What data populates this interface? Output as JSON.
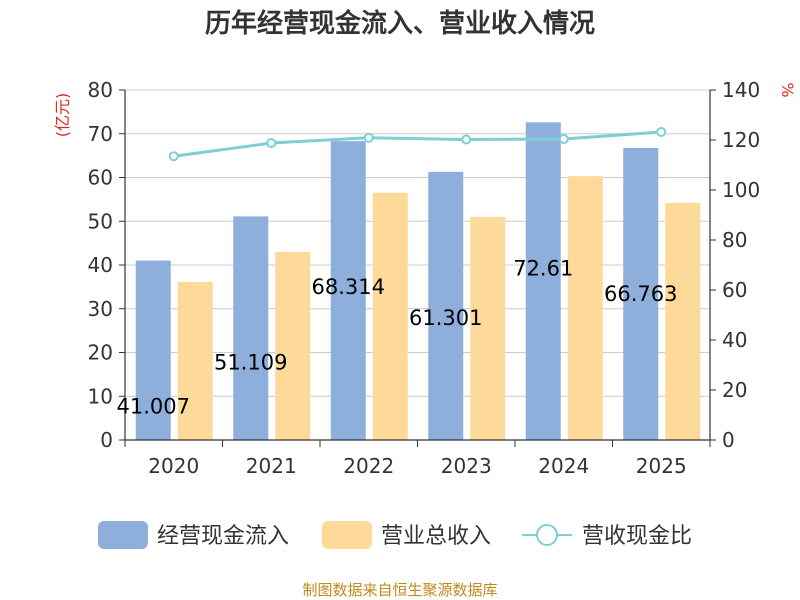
{
  "chart_data": {
    "type": "bar",
    "title": "历年经营现金流入、营业收入情况",
    "categories": [
      "2020",
      "2021",
      "2022",
      "2023",
      "2024",
      "2025"
    ],
    "series": [
      {
        "name": "经营现金流入",
        "axis": "left",
        "type": "bar",
        "values": [
          41.007,
          51.109,
          68.314,
          61.301,
          72.61,
          66.763
        ],
        "labels": [
          "41.007",
          "51.109",
          "68.314",
          "61.301",
          "72.61",
          "66.763"
        ],
        "color": "#8eaedb"
      },
      {
        "name": "营业总收入",
        "axis": "left",
        "type": "bar",
        "values": [
          36.1,
          43.0,
          56.5,
          51.0,
          60.3,
          54.2
        ],
        "color": "#fdd99a"
      },
      {
        "name": "营收现金比",
        "axis": "right",
        "type": "line",
        "values": [
          113.5,
          118.8,
          120.9,
          120.2,
          120.4,
          123.2
        ],
        "color": "#7dd0d2"
      }
    ],
    "y_left": {
      "label": "(亿元)",
      "min": 0,
      "max": 80,
      "ticks": [
        "0",
        "10",
        "20",
        "30",
        "40",
        "50",
        "60",
        "70",
        "80"
      ]
    },
    "y_right": {
      "label": "%",
      "min": 0,
      "max": 140,
      "ticks": [
        "0",
        "20",
        "40",
        "60",
        "80",
        "100",
        "120",
        "140"
      ]
    },
    "grid": true,
    "legend_position": "bottom",
    "source": "制图数据来自恒生聚源数据库"
  }
}
